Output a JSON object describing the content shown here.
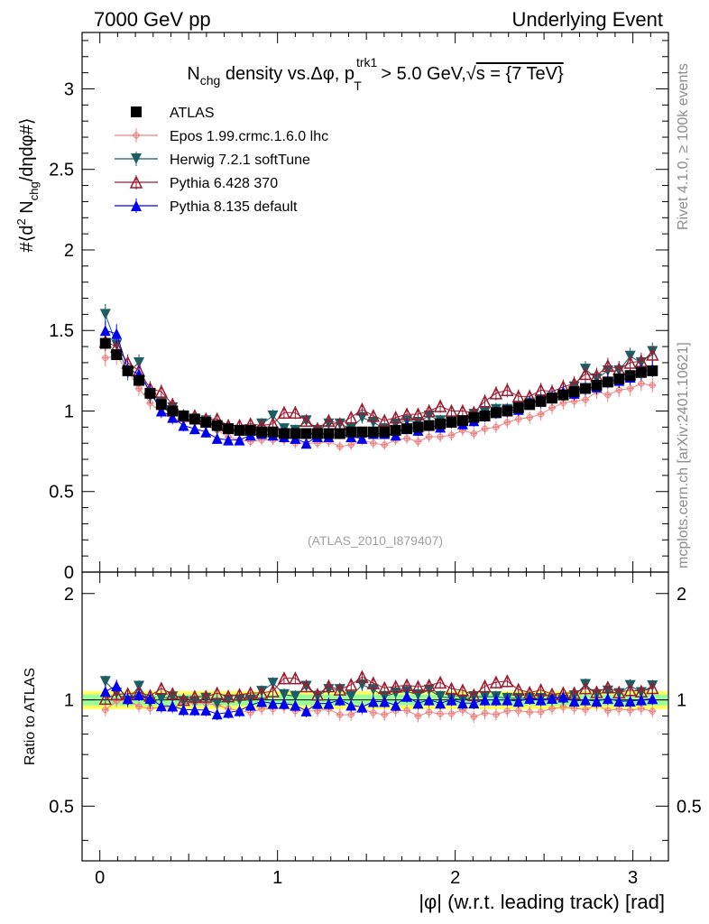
{
  "header": {
    "left": "7000 GeV pp",
    "right": "Underlying Event"
  },
  "side": {
    "rivet": "Rivet 4.1.0, ≥ 100k events",
    "mcplots": "mcplots.cern.ch [arXiv:2401.10621]"
  },
  "chart_data": {
    "type": "scatter",
    "title": "N_chg density vs.Δφ, p_T^trk1 > 5.0 GeV, √s = {7 TeV}",
    "title_parts": {
      "n": "N",
      "chg": "chg",
      "mid": " density vs.Δφ, p",
      "T": "T",
      "trk1": "trk1",
      "tail": " > 5.0 GeV,",
      "sqrt": "√",
      "s": "s = {7 TeV}"
    },
    "ylabel": "#⟨d² N_chg/dηdφ#⟩",
    "ylabel_parts": {
      "a": "#⟨d",
      "sup": "2",
      "b": " N",
      "sub": "chg",
      "c": "/dηdφ#⟩"
    },
    "xlabel": "|φ| (w.r.t. leading track) [rad]",
    "ratio_ylabel": "Ratio to ATLAS",
    "watermark": "(ATLAS_2010_I879407)",
    "xlim": [
      -0.1,
      3.2
    ],
    "ylim": [
      0,
      3.35
    ],
    "ratio_ylim": [
      0.35,
      2.3
    ],
    "x_ticks": [
      0,
      1,
      2,
      3
    ],
    "x_tick_labels": [
      "0",
      "1",
      "2",
      "3"
    ],
    "y_ticks": [
      0,
      0.5,
      1,
      1.5,
      2,
      2.5,
      3
    ],
    "y_tick_labels": [
      "0",
      "0.5",
      "1",
      "1.5",
      "2",
      "2.5",
      "3"
    ],
    "ratio_y_ticks": [
      0.5,
      1,
      2
    ],
    "ratio_y_tick_labels": [
      "0.5",
      "1",
      "2"
    ],
    "x": [
      0.031,
      0.094,
      0.157,
      0.22,
      0.283,
      0.346,
      0.409,
      0.471,
      0.534,
      0.597,
      0.66,
      0.723,
      0.786,
      0.848,
      0.911,
      0.974,
      1.037,
      1.1,
      1.162,
      1.225,
      1.288,
      1.351,
      1.414,
      1.476,
      1.539,
      1.602,
      1.665,
      1.728,
      1.791,
      1.853,
      1.916,
      1.979,
      2.042,
      2.105,
      2.167,
      2.23,
      2.293,
      2.356,
      2.419,
      2.482,
      2.545,
      2.608,
      2.67,
      2.733,
      2.796,
      2.859,
      2.922,
      2.985,
      3.047,
      3.11
    ],
    "series": [
      {
        "name": "ATLAS",
        "color": "#000000",
        "marker": "square",
        "values": [
          1.42,
          1.35,
          1.25,
          1.19,
          1.11,
          1.04,
          1.0,
          0.97,
          0.95,
          0.93,
          0.91,
          0.89,
          0.88,
          0.88,
          0.87,
          0.87,
          0.86,
          0.86,
          0.86,
          0.86,
          0.86,
          0.86,
          0.87,
          0.87,
          0.87,
          0.87,
          0.88,
          0.89,
          0.9,
          0.91,
          0.92,
          0.93,
          0.94,
          0.96,
          0.97,
          0.99,
          1.0,
          1.02,
          1.04,
          1.06,
          1.08,
          1.1,
          1.12,
          1.14,
          1.16,
          1.18,
          1.2,
          1.22,
          1.24,
          1.25
        ]
      },
      {
        "name": "Epos 1.99.crmc.1.6.0 lhc",
        "color": "#f08080",
        "marker": "cross",
        "values": [
          1.33,
          1.34,
          1.25,
          1.14,
          1.05,
          0.99,
          0.95,
          0.95,
          0.93,
          0.91,
          0.88,
          0.84,
          0.82,
          0.81,
          0.82,
          0.82,
          0.82,
          0.8,
          0.8,
          0.8,
          0.81,
          0.78,
          0.79,
          0.82,
          0.8,
          0.79,
          0.82,
          0.83,
          0.81,
          0.84,
          0.84,
          0.85,
          0.88,
          0.86,
          0.89,
          0.9,
          0.93,
          0.95,
          0.96,
          0.98,
          1.02,
          1.05,
          1.06,
          1.07,
          1.12,
          1.1,
          1.13,
          1.14,
          1.17,
          1.16
        ]
      },
      {
        "name": "Herwig 7.2.1 softTune",
        "color": "#1b5e63",
        "marker": "triangle-down",
        "values": [
          1.6,
          1.41,
          1.24,
          1.3,
          1.09,
          1.05,
          1.02,
          0.96,
          0.94,
          0.94,
          0.89,
          0.89,
          0.88,
          0.88,
          0.92,
          0.97,
          0.89,
          0.88,
          0.94,
          0.88,
          0.92,
          0.92,
          0.89,
          0.96,
          0.93,
          0.89,
          0.92,
          0.94,
          0.93,
          0.97,
          0.94,
          0.94,
          0.94,
          0.98,
          0.99,
          1.01,
          1.01,
          1.03,
          1.05,
          1.07,
          1.08,
          1.1,
          1.15,
          1.26,
          1.2,
          1.25,
          1.25,
          1.34,
          1.3,
          1.37
        ]
      },
      {
        "name": "Pythia 6.428 370",
        "color": "#9b1b30",
        "marker": "triangle-open",
        "values": [
          1.43,
          1.4,
          1.3,
          1.25,
          1.14,
          1.12,
          1.04,
          0.97,
          0.97,
          0.95,
          0.95,
          0.91,
          0.91,
          0.92,
          0.91,
          0.92,
          0.99,
          0.99,
          0.94,
          0.89,
          0.94,
          0.92,
          0.96,
          1.01,
          0.97,
          0.94,
          0.96,
          0.98,
          0.98,
          1.0,
          1.03,
          1.0,
          1.0,
          0.99,
          1.06,
          1.11,
          1.13,
          1.09,
          1.09,
          1.13,
          1.12,
          1.15,
          1.17,
          1.23,
          1.22,
          1.28,
          1.26,
          1.3,
          1.31,
          1.35
        ]
      },
      {
        "name": "Pythia 8.135 default",
        "color": "#0000ee",
        "marker": "triangle-up",
        "values": [
          1.5,
          1.48,
          1.26,
          1.23,
          1.12,
          1.0,
          0.96,
          0.91,
          0.89,
          0.87,
          0.83,
          0.82,
          0.82,
          0.85,
          0.86,
          0.85,
          0.84,
          0.83,
          0.8,
          0.84,
          0.84,
          0.86,
          0.84,
          0.83,
          0.86,
          0.86,
          0.85,
          0.91,
          0.88,
          0.91,
          0.9,
          0.93,
          0.92,
          0.94,
          0.97,
          0.99,
          1.0,
          1.01,
          1.05,
          1.06,
          1.09,
          1.12,
          1.11,
          1.14,
          1.15,
          1.19,
          1.19,
          1.21,
          1.24,
          1.26
        ]
      }
    ],
    "error_fraction": 0.04,
    "legend_position": "top-left"
  }
}
